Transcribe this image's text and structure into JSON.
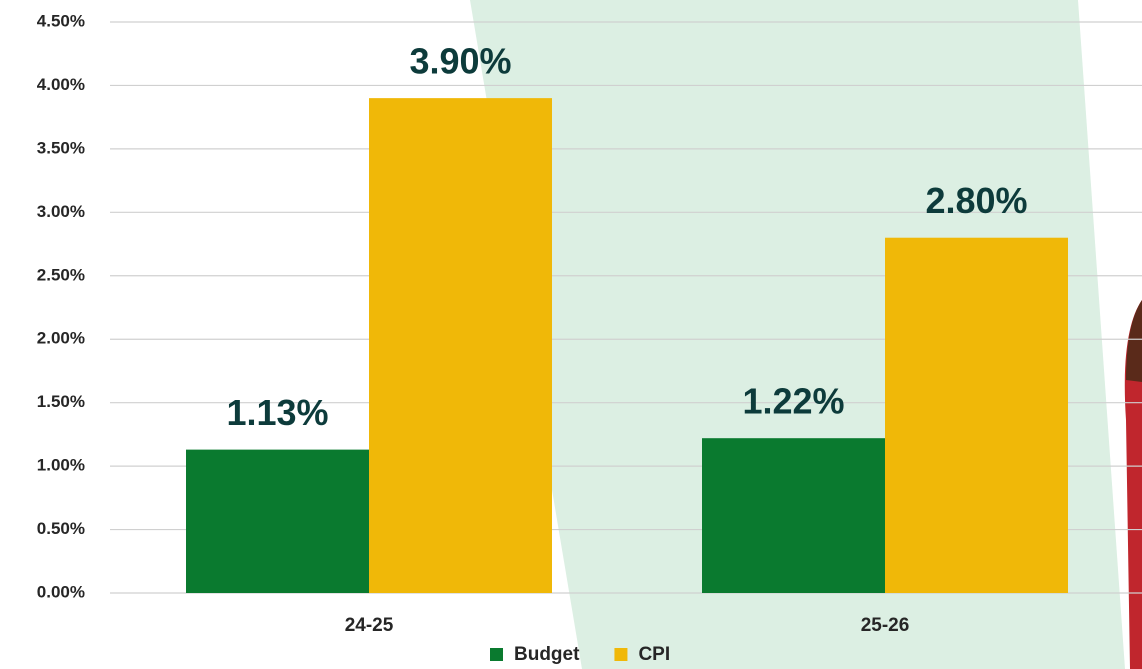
{
  "chart_data": {
    "type": "bar",
    "categories": [
      "24-25",
      "25-26"
    ],
    "series": [
      {
        "name": "Budget",
        "color": "#0a7a2f",
        "values": [
          1.13,
          1.22
        ],
        "value_labels": [
          "1.13%",
          "1.22%"
        ]
      },
      {
        "name": "CPI",
        "color": "#f0b808",
        "values": [
          3.9,
          2.8
        ],
        "value_labels": [
          "3.90%",
          "2.80%"
        ]
      }
    ],
    "ylim": [
      0,
      4.5
    ],
    "yticks": [
      {
        "value": 0,
        "label": "0.00%"
      },
      {
        "value": 0.5,
        "label": "0.50%"
      },
      {
        "value": 1,
        "label": "1.00%"
      },
      {
        "value": 1.5,
        "label": "1.50%"
      },
      {
        "value": 2,
        "label": "2.00%"
      },
      {
        "value": 2.5,
        "label": "2.50%"
      },
      {
        "value": 3,
        "label": "3.00%"
      },
      {
        "value": 3.5,
        "label": "3.50%"
      },
      {
        "value": 4,
        "label": "4.00%"
      },
      {
        "value": 4.5,
        "label": "4.50%"
      }
    ],
    "grid": true,
    "legend": "bottom"
  }
}
